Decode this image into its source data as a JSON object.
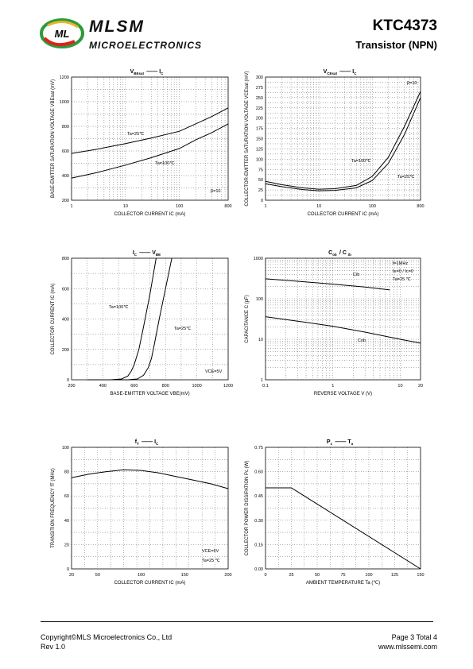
{
  "header": {
    "brand": "MLSM",
    "brand_sub": "MICROELECTRONICS",
    "part_number": "KTC4373",
    "part_type": "Transistor  (NPN)",
    "logo_letters": "ML",
    "logo_colors": [
      "#2e9a3a",
      "#d9251d",
      "#e8b52a"
    ]
  },
  "footer": {
    "copyright": "Copyright©MLS Microelectronics Co., Ltd",
    "rev": "Rev 1.0",
    "page": "Page 3 Total 4",
    "url": "www.mlssemi.com"
  },
  "chart_data": [
    {
      "type": "line",
      "title": "VBEsat — IC",
      "xlabel": "COLLECTOR CURRENT   IC   (mA)",
      "ylabel": "BASE-EMITTER SATURATION VOLTAGE   VBEsat   (mV)",
      "xscale": "log",
      "xlim": [
        1,
        800
      ],
      "ylim": [
        200,
        1200
      ],
      "xticks": [
        "1",
        "10",
        "100",
        "800"
      ],
      "yticks": [
        "200",
        "400",
        "600",
        "800",
        "1000",
        "1200"
      ],
      "annotations": [
        "Ta=25℃",
        "Ta=100℃",
        "β=10"
      ],
      "series": [
        {
          "name": "Ta=25℃",
          "x": [
            1,
            3,
            10,
            30,
            100,
            200,
            400,
            800
          ],
          "y": [
            580,
            615,
            660,
            705,
            760,
            820,
            880,
            950
          ]
        },
        {
          "name": "Ta=100℃",
          "x": [
            1,
            3,
            10,
            30,
            100,
            200,
            400,
            800
          ],
          "y": [
            380,
            425,
            485,
            545,
            620,
            690,
            750,
            820
          ]
        }
      ]
    },
    {
      "type": "line",
      "title": "VCEsat — IC",
      "xlabel": "COLLECTOR CURRENT   IC   (mA)",
      "ylabel": "COLLECTOR-EMITTER SATURATION VOLTAGE   VCEsat   (mV)",
      "xscale": "log",
      "xlim": [
        1,
        800
      ],
      "ylim": [
        0,
        300
      ],
      "xticks": [
        "1",
        "10",
        "100",
        "800"
      ],
      "yticks": [
        "0",
        "25",
        "50",
        "75",
        "100",
        "125",
        "150",
        "175",
        "200",
        "225",
        "250",
        "275",
        "300"
      ],
      "annotations": [
        "β=10",
        "Ta=100℃",
        "Ta=25℃"
      ],
      "series": [
        {
          "name": "Ta=100℃",
          "x": [
            1,
            2,
            5,
            10,
            20,
            50,
            100,
            200,
            400,
            800
          ],
          "y": [
            40,
            33,
            26,
            23,
            24,
            30,
            48,
            90,
            160,
            250
          ]
        },
        {
          "name": "Ta=25℃",
          "x": [
            1,
            2,
            5,
            10,
            20,
            50,
            100,
            200,
            400,
            800
          ],
          "y": [
            46,
            38,
            30,
            27,
            28,
            36,
            58,
            105,
            180,
            265
          ]
        }
      ]
    },
    {
      "type": "line",
      "title": "IC — VBE",
      "xlabel": "BASE-EMITTER VOLTAGE   VBE(mV)",
      "ylabel": "COLLECTOR CURRENT   IC (mA)",
      "xlim": [
        200,
        1200
      ],
      "ylim": [
        0,
        800
      ],
      "xticks": [
        "200",
        "400",
        "600",
        "800",
        "1000",
        "1200"
      ],
      "yticks": [
        "0",
        "200",
        "400",
        "600",
        "800"
      ],
      "annotations": [
        "Ta=100℃",
        "Ta=25℃",
        "VCE=5V"
      ],
      "series": [
        {
          "name": "Ta=100℃",
          "x": [
            300,
            450,
            520,
            560,
            580,
            600,
            630,
            660,
            700,
            740
          ],
          "y": [
            0,
            0,
            5,
            25,
            55,
            100,
            200,
            350,
            560,
            800
          ]
        },
        {
          "name": "Ta=25℃",
          "x": [
            400,
            560,
            620,
            660,
            690,
            710,
            730,
            760,
            800,
            840
          ],
          "y": [
            0,
            0,
            5,
            30,
            80,
            140,
            240,
            400,
            600,
            800
          ]
        }
      ]
    },
    {
      "type": "line",
      "title": "Cob / Cib — VCB / VEB",
      "xlabel": "REVERSE  VOLTAGE   V   (V)",
      "ylabel": "CAPACITANCE   C   (pF)",
      "xscale": "log",
      "yscale": "log",
      "xlim": [
        0.1,
        20
      ],
      "ylim": [
        1,
        1000
      ],
      "xticks": [
        "0.1",
        "1",
        "10",
        "20"
      ],
      "yticks": [
        "1",
        "10",
        "100",
        "1000"
      ],
      "annotations": [
        "f=1MHz",
        "Ie=0 / Ic=0",
        "Ta=25 ℃",
        "Cib",
        "Cob"
      ],
      "series": [
        {
          "name": "Cib",
          "x": [
            0.1,
            0.3,
            1,
            3,
            7
          ],
          "y": [
            310,
            270,
            230,
            195,
            165
          ]
        },
        {
          "name": "Cob",
          "x": [
            0.1,
            0.3,
            1,
            3,
            10,
            20
          ],
          "y": [
            36,
            28,
            21,
            15,
            10,
            8
          ]
        }
      ]
    },
    {
      "type": "line",
      "title": "fT — IC",
      "xlabel": "COLLECTOR CURRENT   IC   (mA)",
      "ylabel": "TRANSITION FREQUENCY   fT   (MHz)",
      "xlim": [
        20,
        200
      ],
      "ylim": [
        0,
        100
      ],
      "xticks": [
        "20",
        "50",
        "100",
        "150",
        "200"
      ],
      "yticks": [
        "0",
        "20",
        "40",
        "60",
        "80",
        "100"
      ],
      "annotations": [
        "VCE=6V",
        "Ta=25 ℃"
      ],
      "series": [
        {
          "name": "fT",
          "x": [
            20,
            40,
            60,
            80,
            100,
            120,
            140,
            160,
            180,
            200
          ],
          "y": [
            75,
            78,
            80,
            81.5,
            81,
            79,
            76,
            73,
            70,
            66
          ]
        }
      ]
    },
    {
      "type": "line",
      "title": "Pc — Ta",
      "xlabel": "AMBIENT TEMPERATURE   Ta   (℃)",
      "ylabel": "COLLECTOR POWER DISSIPATION   Pc   (W)",
      "xlim": [
        0,
        150
      ],
      "ylim": [
        0,
        0.75
      ],
      "xticks": [
        "0",
        "25",
        "50",
        "75",
        "100",
        "125",
        "150"
      ],
      "yticks": [
        "0.00",
        "0.15",
        "0.30",
        "0.45",
        "0.60",
        "0.75"
      ],
      "series": [
        {
          "name": "Pc",
          "x": [
            0,
            25,
            150
          ],
          "y": [
            0.5,
            0.5,
            0
          ]
        }
      ]
    }
  ],
  "charts_text": [
    {
      "title_main": "V",
      "title_sub": "BEsat",
      "title_dash": "——",
      "title_main2": "I",
      "title_sub2": "C"
    },
    {
      "title_main": "V",
      "title_sub": "CEsat",
      "title_dash": "——",
      "title_main2": "I",
      "title_sub2": "C"
    },
    {
      "title_main": "I",
      "title_sub": "C",
      "title_dash": "——",
      "title_main2": "V",
      "title_sub2": "BE"
    },
    {
      "title_main": "C",
      "title_sub": "ob",
      "title_dash": "/ C",
      "title_main2": "",
      "title_sub2": "ib"
    },
    {
      "title_main": "f",
      "title_sub": "T",
      "title_dash": "——",
      "title_main2": "I",
      "title_sub2": "C"
    },
    {
      "title_main": "P",
      "title_sub": "c",
      "title_dash": "——",
      "title_main2": "T",
      "title_sub2": "a"
    }
  ]
}
